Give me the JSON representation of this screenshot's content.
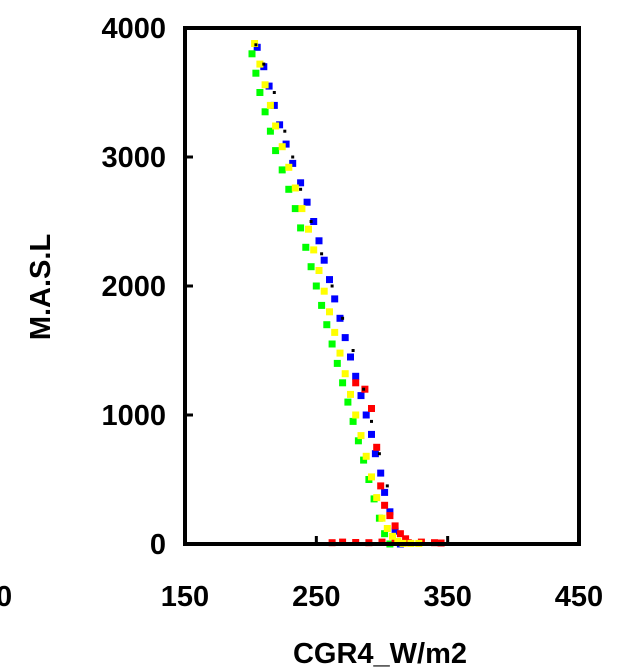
{
  "chart_data": {
    "type": "scatter",
    "xlabel": "CGR4_W/m2",
    "ylabel": "M.A.S.L",
    "xlim": [
      150,
      450
    ],
    "ylim": [
      0,
      4000
    ],
    "x_ticks": [
      "150",
      "250",
      "350",
      "450"
    ],
    "y_ticks": [
      "0",
      "1000",
      "2000",
      "3000",
      "4000"
    ],
    "clipped_left_label": "0",
    "grid": false,
    "legend": "none",
    "series": [
      {
        "color": "#0000ff",
        "points": [
          [
            205,
            3850
          ],
          [
            210,
            3700
          ],
          [
            214,
            3550
          ],
          [
            218,
            3400
          ],
          [
            222,
            3250
          ],
          [
            227,
            3100
          ],
          [
            232,
            2950
          ],
          [
            238,
            2800
          ],
          [
            243,
            2650
          ],
          [
            248,
            2500
          ],
          [
            252,
            2350
          ],
          [
            256,
            2200
          ],
          [
            260,
            2050
          ],
          [
            264,
            1900
          ],
          [
            268,
            1750
          ],
          [
            272,
            1600
          ],
          [
            276,
            1450
          ],
          [
            280,
            1300
          ],
          [
            284,
            1150
          ],
          [
            288,
            1000
          ],
          [
            292,
            850
          ],
          [
            295,
            700
          ],
          [
            299,
            550
          ],
          [
            302,
            400
          ],
          [
            306,
            250
          ],
          [
            310,
            100
          ],
          [
            314,
            0
          ]
        ]
      },
      {
        "color": "#00ff00",
        "points": [
          [
            201,
            3800
          ],
          [
            204,
            3650
          ],
          [
            207,
            3500
          ],
          [
            211,
            3350
          ],
          [
            215,
            3200
          ],
          [
            219,
            3050
          ],
          [
            224,
            2900
          ],
          [
            229,
            2750
          ],
          [
            234,
            2600
          ],
          [
            238,
            2450
          ],
          [
            242,
            2300
          ],
          [
            246,
            2150
          ],
          [
            250,
            2000
          ],
          [
            254,
            1850
          ],
          [
            258,
            1700
          ],
          [
            262,
            1550
          ],
          [
            266,
            1400
          ],
          [
            270,
            1250
          ],
          [
            274,
            1100
          ],
          [
            278,
            950
          ],
          [
            282,
            800
          ],
          [
            286,
            650
          ],
          [
            290,
            500
          ],
          [
            294,
            350
          ],
          [
            298,
            200
          ],
          [
            302,
            80
          ],
          [
            306,
            0
          ]
        ]
      },
      {
        "color": "#ff0000",
        "points": [
          [
            280,
            1250
          ],
          [
            287,
            1200
          ],
          [
            292,
            1050
          ],
          [
            296,
            750
          ],
          [
            299,
            450
          ],
          [
            302,
            300
          ],
          [
            306,
            220
          ],
          [
            310,
            140
          ],
          [
            314,
            80
          ],
          [
            318,
            40
          ],
          [
            262,
            10
          ],
          [
            270,
            15
          ],
          [
            280,
            12
          ],
          [
            290,
            10
          ],
          [
            300,
            15
          ],
          [
            310,
            12
          ],
          [
            320,
            10
          ],
          [
            330,
            15
          ],
          [
            340,
            10
          ],
          [
            345,
            8
          ]
        ]
      },
      {
        "color": "#ffff00",
        "points": [
          [
            203,
            3880
          ],
          [
            207,
            3720
          ],
          [
            211,
            3560
          ],
          [
            215,
            3400
          ],
          [
            219,
            3240
          ],
          [
            224,
            3080
          ],
          [
            229,
            2920
          ],
          [
            234,
            2760
          ],
          [
            239,
            2600
          ],
          [
            244,
            2440
          ],
          [
            248,
            2280
          ],
          [
            252,
            2120
          ],
          [
            256,
            1960
          ],
          [
            260,
            1800
          ],
          [
            264,
            1640
          ],
          [
            268,
            1480
          ],
          [
            272,
            1320
          ],
          [
            276,
            1160
          ],
          [
            280,
            1000
          ],
          [
            284,
            840
          ],
          [
            288,
            680
          ],
          [
            292,
            520
          ],
          [
            296,
            360
          ],
          [
            300,
            200
          ],
          [
            304,
            120
          ],
          [
            308,
            60
          ],
          [
            312,
            20
          ],
          [
            316,
            5
          ],
          [
            322,
            5
          ],
          [
            328,
            5
          ]
        ]
      },
      {
        "color": "#000000",
        "points": [
          [
            204,
            3870
          ],
          [
            210,
            3720
          ],
          [
            218,
            3500
          ],
          [
            226,
            3200
          ],
          [
            232,
            3000
          ],
          [
            238,
            2750
          ],
          [
            246,
            2500
          ],
          [
            254,
            2250
          ],
          [
            262,
            2000
          ],
          [
            270,
            1750
          ],
          [
            278,
            1500
          ],
          [
            286,
            1200
          ],
          [
            292,
            950
          ],
          [
            298,
            700
          ],
          [
            304,
            450
          ]
        ]
      }
    ]
  }
}
